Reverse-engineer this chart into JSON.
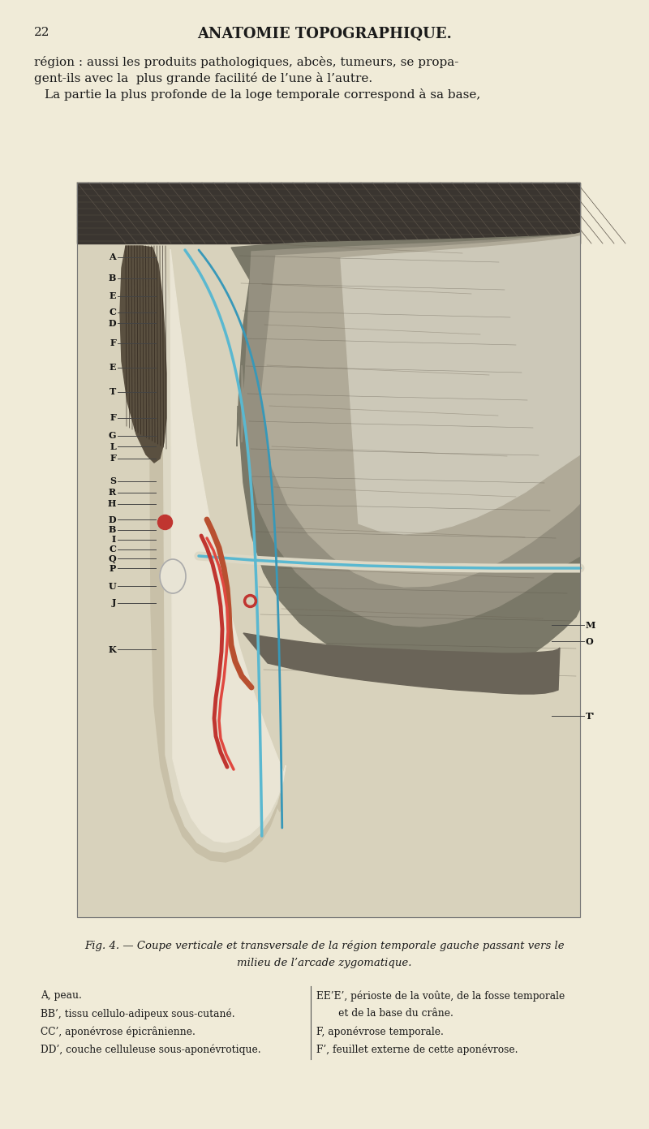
{
  "background_color": "#f0ebd8",
  "page_number": "22",
  "header_title": "ANATOMIE TOPOGRAPHIQUE.",
  "intro_text_line1": "région : aussi les produits pathologiques, abcès, tumeurs, se propa-",
  "intro_text_line2": "gent-ils avec la  plus grande facilité de l’une à l’autre.",
  "intro_text_line3": "La partie la plus profonde de la loge temporale correspond à sa base,",
  "fig_caption_line1": "Fig. 4. — Coupe verticale et transversale de la région temporale gauche passant vers le",
  "fig_caption_line2": "milieu de l’arcade zygomatique.",
  "legend_left": [
    "A, peau.",
    "BB’, tissu cellulo-adipeux sous-cutané.",
    "CC’, aponévrose épicrânienne.",
    "DD’, couche celluleuse sous-aponévrotique."
  ],
  "legend_right": [
    "EE’E’, périoste de la voûte, de la fosse temporale",
    "       et de la base du crâne.",
    "F, aponévrose temporale.",
    "F’, feuillet externe de cette aponévrose."
  ],
  "text_color": "#1a1a1a"
}
